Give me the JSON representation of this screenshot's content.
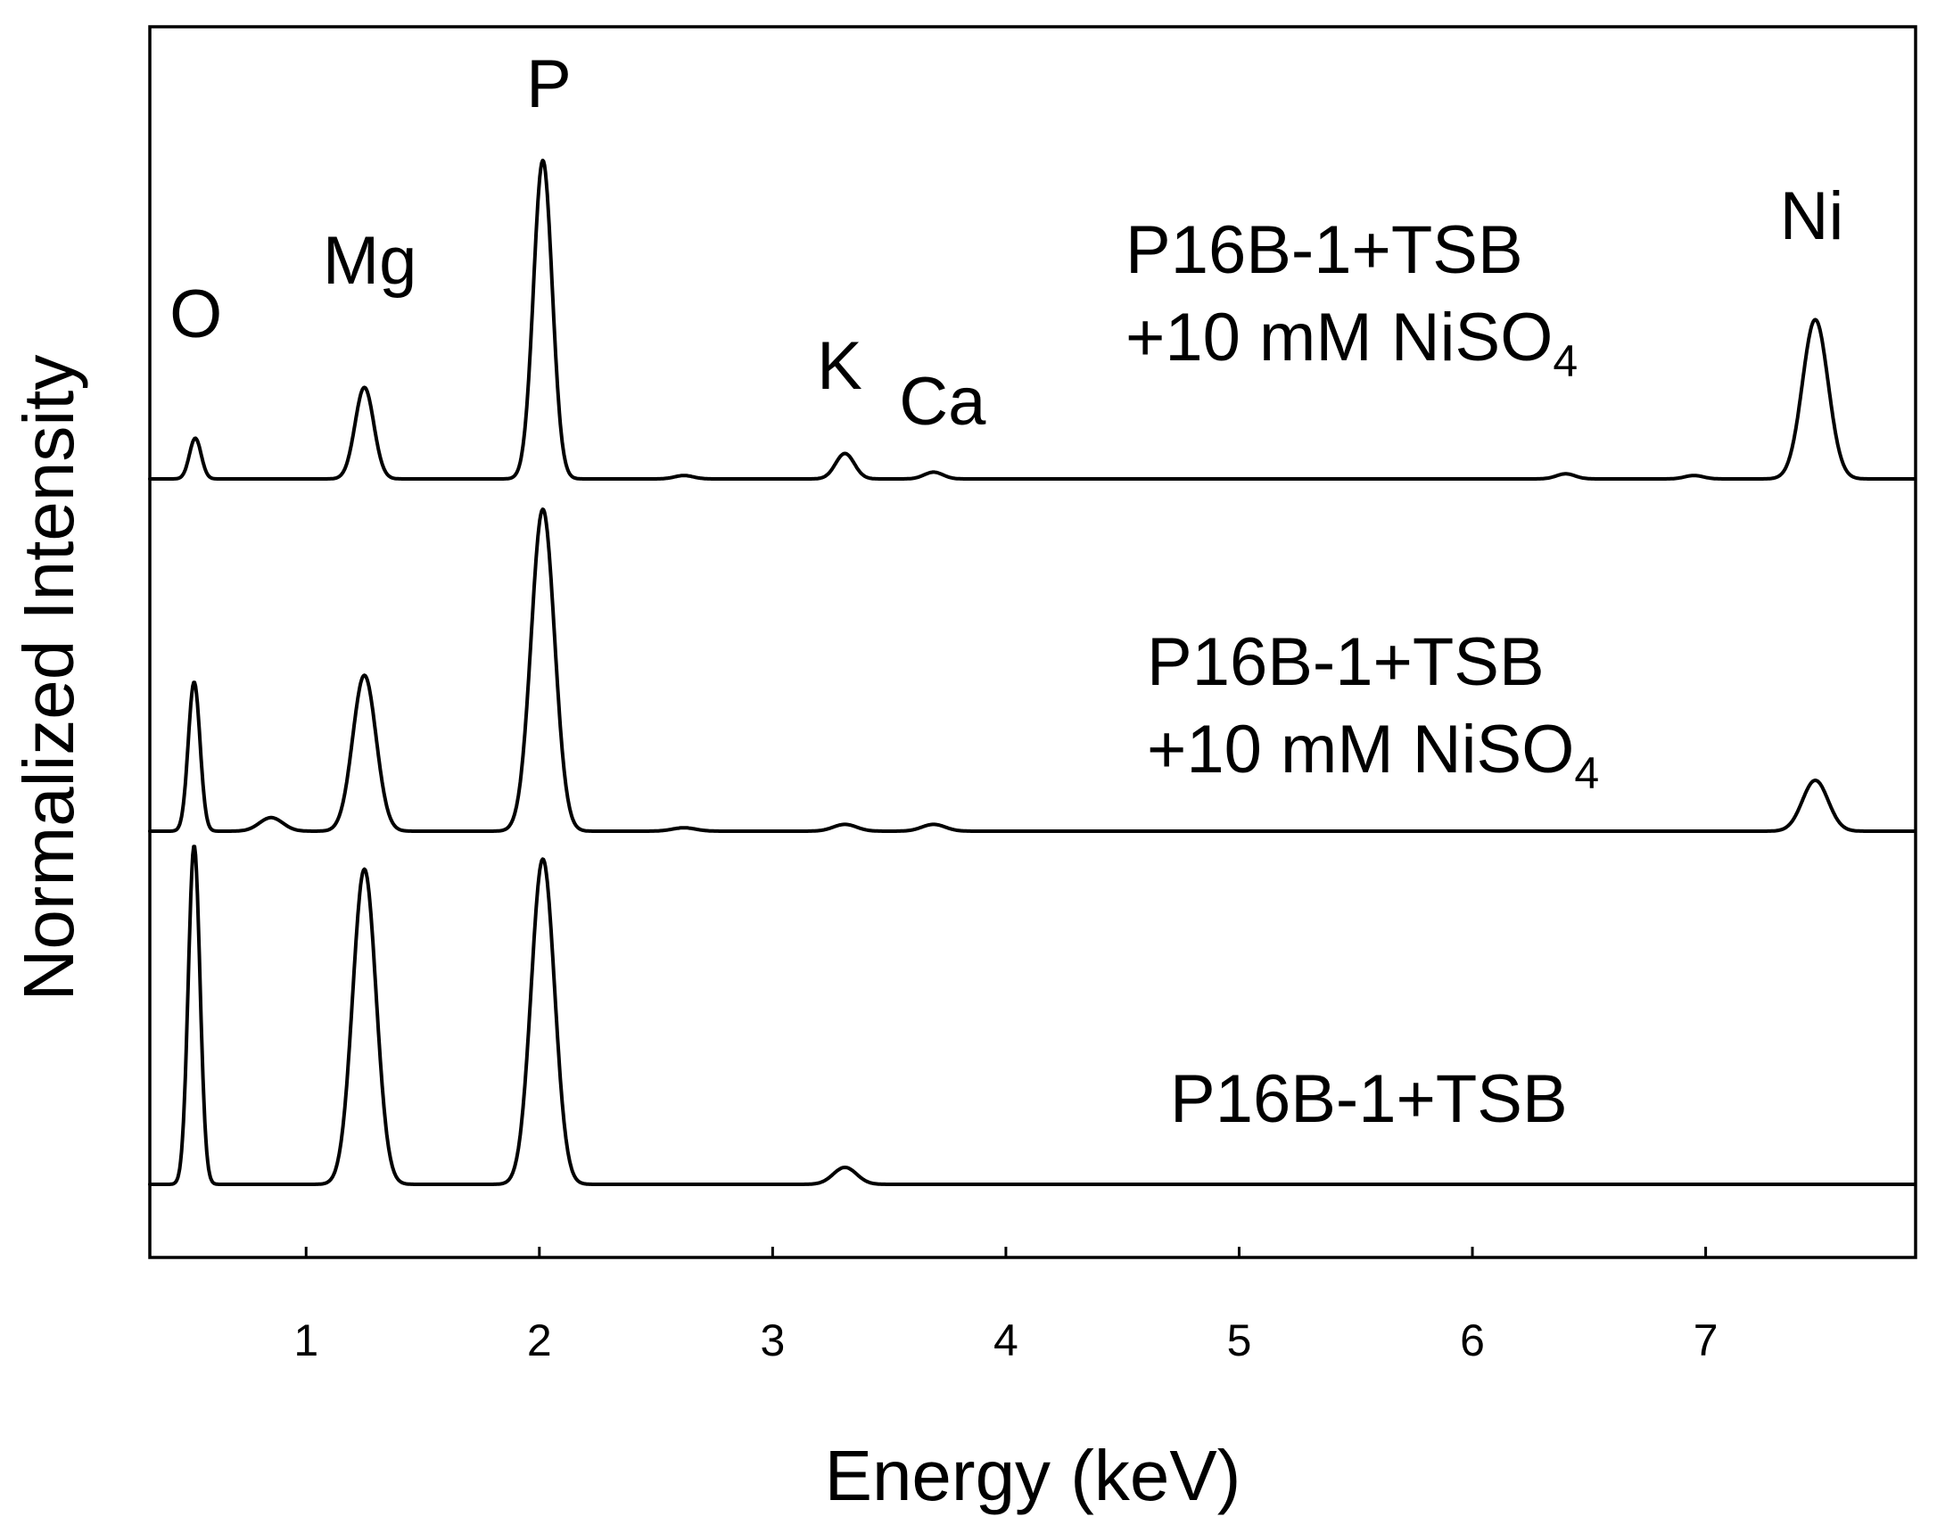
{
  "chart_data": {
    "type": "line",
    "title": "",
    "xlabel": "Energy (keV)",
    "ylabel": "Normalized Intensity",
    "xlim": [
      0.33,
      7.9
    ],
    "xticks": [
      1,
      2,
      3,
      4,
      5,
      6,
      7
    ],
    "xtick_labels": [
      "1",
      "2",
      "3",
      "4",
      "5",
      "6",
      "7"
    ],
    "yticks_shown": false,
    "grid": false,
    "peak_labels": [
      {
        "text": "O",
        "energy": 0.52
      },
      {
        "text": "Mg",
        "energy": 1.25
      },
      {
        "text": "P",
        "energy": 2.01
      },
      {
        "text": "K",
        "energy": 3.31
      },
      {
        "text": "Ca",
        "energy": 3.69
      },
      {
        "text": "Ni",
        "energy": 7.47
      }
    ],
    "series": [
      {
        "label_line1": "P16B-1+TSB",
        "label_line2": "+10 mM NiSO",
        "label_sub": "4",
        "peaks": [
          {
            "energy": 0.525,
            "height": 0.12
          },
          {
            "energy": 1.25,
            "height": 0.27
          },
          {
            "energy": 2.015,
            "height": 0.94
          },
          {
            "energy": 2.62,
            "height": 0.01
          },
          {
            "energy": 3.31,
            "height": 0.075
          },
          {
            "energy": 3.69,
            "height": 0.02
          },
          {
            "energy": 6.4,
            "height": 0.015
          },
          {
            "energy": 6.95,
            "height": 0.01
          },
          {
            "energy": 7.47,
            "height": 0.47
          }
        ]
      },
      {
        "label_line1": "P16B-1+TSB",
        "label_line2": "+10 mM NiSO",
        "label_sub": "4",
        "peaks": [
          {
            "energy": 0.52,
            "height": 0.44
          },
          {
            "energy": 0.85,
            "height": 0.04
          },
          {
            "energy": 1.25,
            "height": 0.46
          },
          {
            "energy": 2.015,
            "height": 0.95
          },
          {
            "energy": 2.62,
            "height": 0.01
          },
          {
            "energy": 3.31,
            "height": 0.02
          },
          {
            "energy": 3.69,
            "height": 0.02
          },
          {
            "energy": 7.47,
            "height": 0.15
          }
        ]
      },
      {
        "label_line1": "P16B-1+TSB",
        "label_line2": "",
        "label_sub": "",
        "peaks": [
          {
            "energy": 0.52,
            "height": 1.0
          },
          {
            "energy": 1.25,
            "height": 0.93
          },
          {
            "energy": 2.015,
            "height": 0.96
          },
          {
            "energy": 3.31,
            "height": 0.05
          }
        ]
      }
    ]
  }
}
